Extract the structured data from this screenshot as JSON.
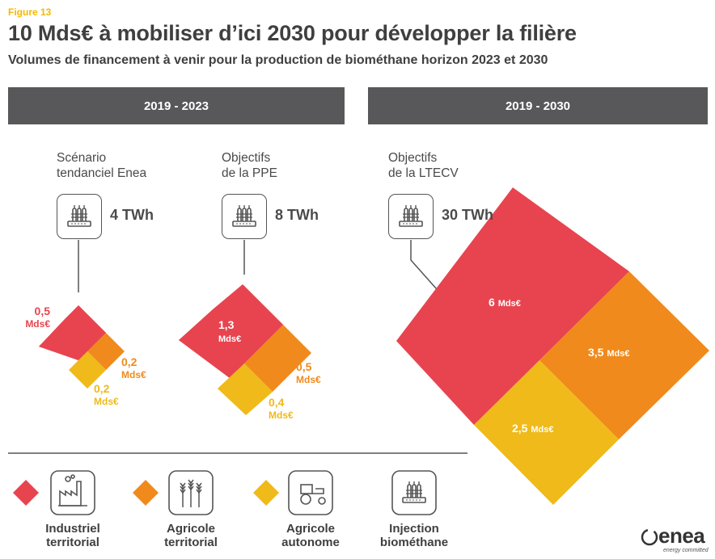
{
  "figure_label": "Figure 13",
  "title": "10 Mds€ à mobiliser d’ici 2030 pour développer la filière",
  "subtitle": "Volumes de financement à venir pour la production de biométhane horizon 2023 et 2030",
  "periods": [
    {
      "label": "2019 - 2023"
    },
    {
      "label": "2019 - 2030"
    }
  ],
  "scenarios": [
    {
      "line1": "Scénario",
      "line2": "tendanciel Enea",
      "energy": "4 TWh",
      "industriel": {
        "value": "0,5",
        "unit": "Mds€"
      },
      "agricole_territorial": {
        "value": "0,2",
        "unit": "Mds€"
      },
      "agricole_autonome": {
        "value": "0,2",
        "unit": "Mds€"
      }
    },
    {
      "line1": "Objectifs",
      "line2": "de la PPE",
      "energy": "8 TWh",
      "industriel": {
        "value": "1,3",
        "unit": "Mds€"
      },
      "agricole_territorial": {
        "value": "0,5",
        "unit": "Mds€"
      },
      "agricole_autonome": {
        "value": "0,4",
        "unit": "Mds€"
      }
    },
    {
      "line1": "Objectifs",
      "line2": "de la LTECV",
      "energy": "30 TWh",
      "industriel": {
        "value": "6",
        "unit": "Mds€"
      },
      "agricole_territorial": {
        "value": "3,5",
        "unit": "Mds€"
      },
      "agricole_autonome": {
        "value": "2,5",
        "unit": "Mds€"
      }
    }
  ],
  "legend": [
    {
      "line1": "Industriel",
      "line2": "territorial",
      "color": "#e8444f",
      "icon": "factory-icon"
    },
    {
      "line1": "Agricole",
      "line2": "territorial",
      "color": "#f08a1c",
      "icon": "wheat-icon"
    },
    {
      "line1": "Agricole",
      "line2": "autonome",
      "color": "#efba1a",
      "icon": "tractor-icon"
    },
    {
      "line1": "Injection",
      "line2": "biométhane",
      "icon": "injection-icon"
    }
  ],
  "colors": {
    "red": "#e8444f",
    "orange": "#f08a1c",
    "yellow": "#efba1a",
    "band": "#58585a"
  },
  "logo": {
    "name": "enea",
    "tagline": "energy committed"
  }
}
